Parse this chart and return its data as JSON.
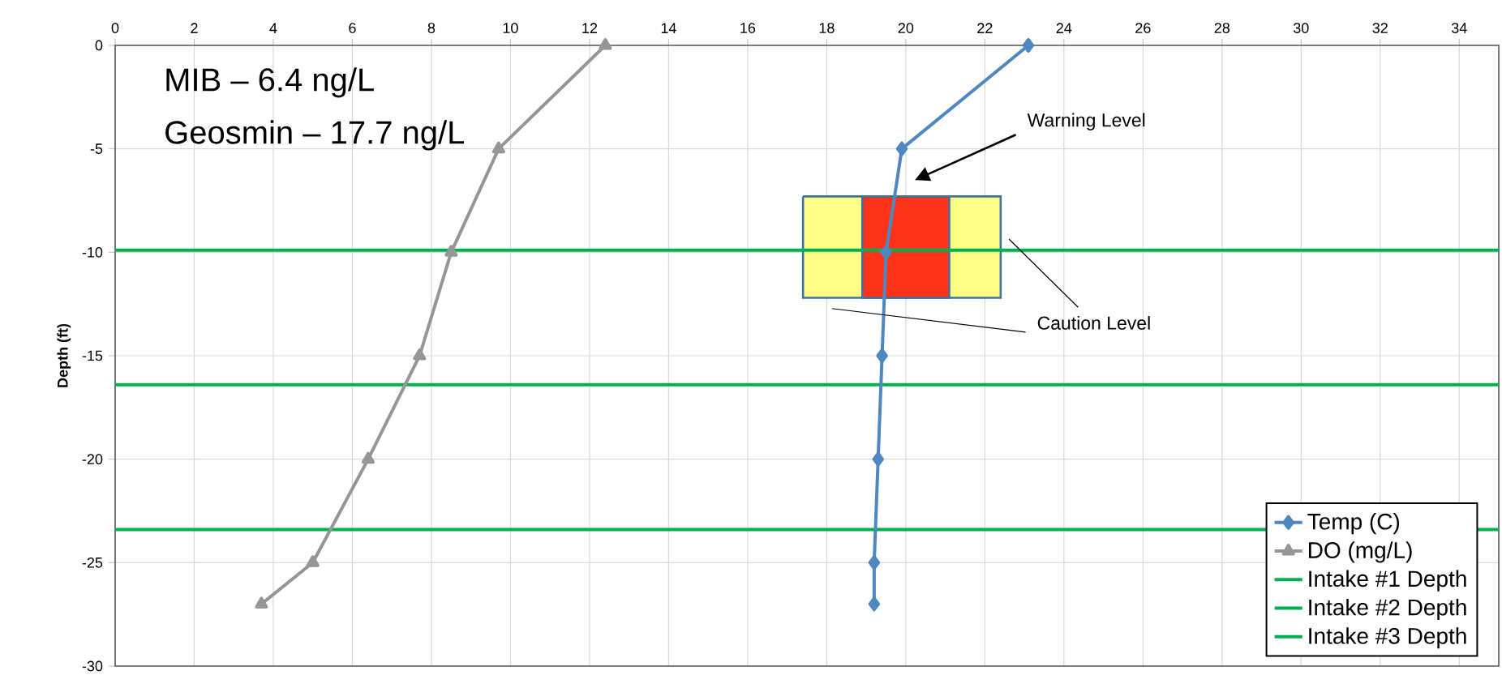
{
  "chart_data": {
    "type": "line",
    "ylabel": "Depth (ft)",
    "xlim": [
      0,
      35
    ],
    "xticks": [
      0,
      2,
      4,
      6,
      8,
      10,
      12,
      14,
      16,
      18,
      20,
      22,
      24,
      26,
      28,
      30,
      32,
      34
    ],
    "ylim": [
      -30,
      0
    ],
    "yticks": [
      0,
      -5,
      -10,
      -15,
      -20,
      -25,
      -30
    ],
    "grid": true,
    "legend": "bottom right",
    "series": [
      {
        "type": "area",
        "color": "#ffff88",
        "x": [
          17.4,
          17.4,
          22.4,
          22.4,
          17.4
        ],
        "values": [
          -7.3,
          -12.2,
          -12.2,
          -7.3,
          -7.3
        ]
      },
      {
        "type": "area",
        "color": "#ff3319",
        "x": [
          18.9,
          18.9,
          21.1,
          21.1,
          18.9
        ],
        "values": [
          -7.3,
          -12.2,
          -12.2,
          -7.3,
          -7.3
        ]
      },
      {
        "name": "Temp (C)",
        "color": "#4f88c0",
        "marker": "diamond",
        "x": [
          23.1,
          19.9,
          19.5,
          19.4,
          19.3,
          19.2,
          19.2
        ],
        "values": [
          0,
          -5,
          -10,
          -15,
          -20,
          -25,
          -27
        ]
      },
      {
        "name": "DO (mg/L)",
        "color": "#969696",
        "marker": "triangle",
        "x": [
          12.4,
          9.7,
          8.5,
          7.7,
          6.4,
          5.0,
          3.7
        ],
        "values": [
          0,
          -5,
          -10,
          -15,
          -20,
          -25,
          -27
        ]
      }
    ],
    "ref_lines": [
      {
        "axis": "y",
        "value": -9.9,
        "label": "Intake #1 Depth",
        "color": "#00b050"
      },
      {
        "axis": "y",
        "value": -16.4,
        "label": "Intake #2 Depth",
        "color": "#00b050"
      },
      {
        "axis": "y",
        "value": -23.4,
        "label": "Intake #3 Depth",
        "color": "#00b050"
      }
    ],
    "annotations": [
      "MIB – 6.4 ng/L",
      "Geosmin – 17.7 ng/L",
      "Warning Level",
      "Caution Level"
    ]
  }
}
